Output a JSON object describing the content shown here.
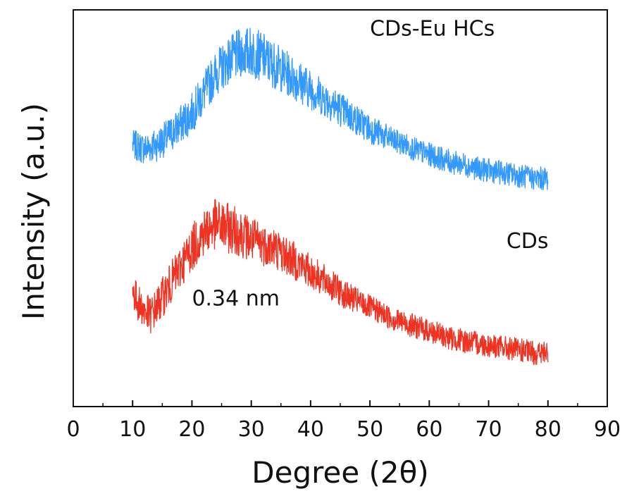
{
  "chart_data": {
    "type": "line",
    "xlabel": "Degree (2θ)",
    "ylabel": "Intensity (a.u.)",
    "xlim": [
      0,
      90
    ],
    "ylim": [
      0,
      1
    ],
    "xticks": [
      "0",
      "10",
      "20",
      "30",
      "40",
      "50",
      "60",
      "70",
      "80",
      "90"
    ],
    "yticks_shown": false,
    "grid": false,
    "series": [
      {
        "name": "CDs-Eu HCs",
        "color": "#3399ff",
        "x": [
          10,
          12,
          14,
          16,
          18,
          20,
          22,
          24,
          26,
          28,
          30,
          32,
          34,
          36,
          38,
          40,
          42,
          44,
          46,
          48,
          50,
          52,
          54,
          56,
          58,
          60,
          62,
          64,
          66,
          68,
          70,
          72,
          74,
          76,
          78,
          80
        ],
        "y": [
          0.66,
          0.65,
          0.66,
          0.68,
          0.71,
          0.74,
          0.79,
          0.84,
          0.87,
          0.89,
          0.895,
          0.88,
          0.86,
          0.84,
          0.82,
          0.8,
          0.78,
          0.76,
          0.74,
          0.72,
          0.7,
          0.685,
          0.67,
          0.66,
          0.645,
          0.635,
          0.625,
          0.615,
          0.61,
          0.6,
          0.595,
          0.59,
          0.585,
          0.58,
          0.575,
          0.575
        ]
      },
      {
        "name": "CDs",
        "color": "#ee3322",
        "x": [
          10,
          11,
          12,
          13,
          14,
          16,
          18,
          20,
          22,
          24,
          26,
          28,
          30,
          32,
          34,
          36,
          38,
          40,
          42,
          44,
          46,
          48,
          50,
          52,
          54,
          56,
          58,
          60,
          62,
          64,
          66,
          68,
          70,
          72,
          74,
          76,
          78,
          80
        ],
        "y": [
          0.29,
          0.26,
          0.24,
          0.23,
          0.25,
          0.3,
          0.35,
          0.4,
          0.44,
          0.46,
          0.45,
          0.44,
          0.42,
          0.41,
          0.4,
          0.38,
          0.36,
          0.34,
          0.32,
          0.3,
          0.28,
          0.265,
          0.25,
          0.235,
          0.22,
          0.21,
          0.2,
          0.19,
          0.18,
          0.17,
          0.165,
          0.16,
          0.155,
          0.15,
          0.145,
          0.14,
          0.135,
          0.135
        ]
      }
    ],
    "annotations": [
      {
        "id": "label-cds-eu",
        "text": "CDs-Eu HCs",
        "x": 50,
        "y": 0.935
      },
      {
        "id": "label-cds",
        "text": "CDs",
        "x": 73,
        "y": 0.4
      },
      {
        "id": "label-dspacing",
        "text": "0.34 nm",
        "x": 20,
        "y": 0.255
      }
    ]
  }
}
